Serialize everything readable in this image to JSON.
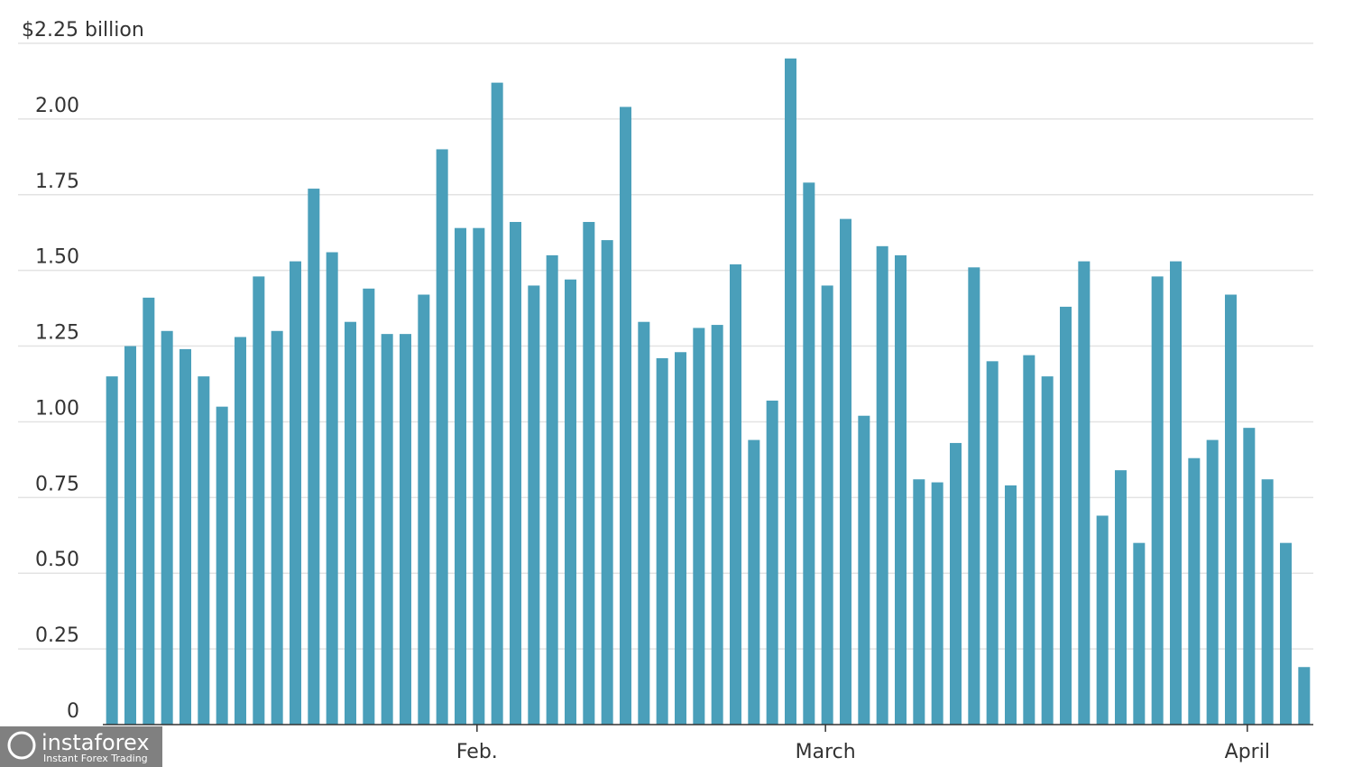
{
  "chart_data": {
    "type": "bar",
    "categories": [
      null,
      null,
      null,
      null,
      null,
      null,
      null,
      null,
      null,
      null,
      null,
      null,
      null,
      null,
      null,
      null,
      null,
      null,
      null,
      null,
      "Feb.",
      null,
      null,
      null,
      null,
      null,
      null,
      null,
      null,
      null,
      null,
      null,
      null,
      null,
      null,
      null,
      null,
      null,
      null,
      "March",
      null,
      null,
      null,
      null,
      null,
      null,
      null,
      null,
      null,
      null,
      null,
      null,
      null,
      null,
      null,
      null,
      null,
      null,
      null,
      null,
      null,
      null,
      "April",
      null,
      null,
      null
    ],
    "values": [
      1.15,
      1.25,
      1.41,
      1.3,
      1.24,
      1.15,
      1.05,
      1.28,
      1.48,
      1.3,
      1.53,
      1.77,
      1.56,
      1.33,
      1.44,
      1.29,
      1.29,
      1.42,
      1.9,
      1.64,
      1.64,
      2.12,
      1.66,
      1.45,
      1.55,
      1.47,
      1.66,
      1.6,
      2.04,
      1.33,
      1.21,
      1.23,
      1.31,
      1.32,
      1.52,
      0.94,
      1.07,
      2.2,
      1.79,
      1.45,
      1.67,
      1.02,
      1.58,
      1.55,
      0.81,
      0.8,
      0.93,
      1.51,
      1.2,
      0.79,
      1.22,
      1.15,
      1.38,
      1.53,
      0.69,
      0.84,
      0.6,
      1.48,
      1.53,
      0.88,
      0.94,
      1.42,
      0.98,
      0.81,
      0.6,
      0.19
    ],
    "color": "#4a9fba",
    "ylim": [
      0,
      2.25
    ],
    "yticks": [
      0,
      0.25,
      {
        "value": 0.5,
        "label": "0.50"
      },
      0.75,
      {
        "value": 1,
        "label": "1.00"
      },
      1.25,
      {
        "value": 1.5,
        "label": "1.50"
      },
      1.75,
      {
        "value": 2,
        "label": "2.00"
      },
      {
        "value": 2.25,
        "label": "$2.25 billion"
      }
    ],
    "grid": true
  },
  "watermark": {
    "brand": "instaforex",
    "tagline": "Instant Forex Trading"
  }
}
